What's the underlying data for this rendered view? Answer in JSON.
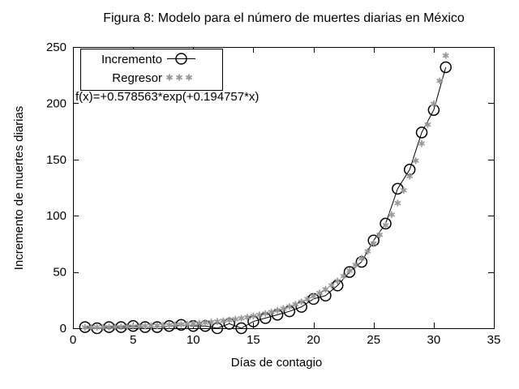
{
  "page": {
    "background": "#ffffff",
    "frame_color": "#000000"
  },
  "chart_data": {
    "type": "line",
    "title": "Figura 8: Modelo para el número de muertes diarias en México",
    "xlabel": "Días de contagio",
    "ylabel": "Incremento de muertes diarias",
    "xlim": [
      0,
      35
    ],
    "ylim": [
      0,
      250
    ],
    "x_ticks": [
      0,
      5,
      10,
      15,
      20,
      25,
      30,
      35
    ],
    "y_ticks": [
      0,
      50,
      100,
      150,
      200,
      250
    ],
    "grid": false,
    "legend_position": "top-left",
    "annotation": "f(x)=+0.578563*exp(+0.194757*x)",
    "series": [
      {
        "name": "Incremento",
        "style": "line-with-open-circles",
        "color": "#000000",
        "x": [
          1,
          2,
          3,
          4,
          5,
          6,
          7,
          8,
          9,
          10,
          11,
          12,
          13,
          14,
          15,
          16,
          17,
          18,
          19,
          20,
          21,
          22,
          23,
          24,
          25,
          26,
          27,
          28,
          29,
          30,
          31
        ],
        "y": [
          1,
          0,
          1,
          1,
          2,
          1,
          1,
          2,
          3,
          2,
          2,
          0,
          4,
          0,
          6,
          9,
          12,
          15,
          19,
          26,
          29,
          38,
          50,
          59,
          78,
          93,
          124,
          141,
          174,
          194,
          232
        ]
      },
      {
        "name": "Regresor",
        "style": "asterisk-points",
        "color": "#999999",
        "x": [
          1,
          1.5,
          2,
          2.5,
          3,
          3.5,
          4,
          4.5,
          5,
          5.5,
          6,
          6.5,
          7,
          7.5,
          8,
          8.5,
          9,
          9.5,
          10,
          10.5,
          11,
          11.5,
          12,
          12.5,
          13,
          13.5,
          14,
          14.5,
          15,
          15.5,
          16,
          16.5,
          17,
          17.5,
          18,
          18.5,
          19,
          19.5,
          20,
          20.5,
          21,
          21.5,
          22,
          22.5,
          23,
          23.5,
          24,
          24.5,
          25,
          25.5,
          26,
          26.5,
          27,
          27.5,
          28,
          28.5,
          29,
          29.5,
          30,
          30.5,
          31
        ],
        "y": [
          0.7,
          0.78,
          0.85,
          0.94,
          1.04,
          1.14,
          1.26,
          1.39,
          1.53,
          1.69,
          1.86,
          2.05,
          2.26,
          2.49,
          2.75,
          3.03,
          3.34,
          3.68,
          4.06,
          4.47,
          4.93,
          5.43,
          5.99,
          6.6,
          7.28,
          8.02,
          8.84,
          9.75,
          10.75,
          11.85,
          13.06,
          14.39,
          15.86,
          17.49,
          19.28,
          21.25,
          23.42,
          25.82,
          28.46,
          31.37,
          34.58,
          38.11,
          42.01,
          46.31,
          51.04,
          56.26,
          62.02,
          68.36,
          75.35,
          83.06,
          91.55,
          100.92,
          111.24,
          122.62,
          135.16,
          148.98,
          164.22,
          181.01,
          199.52,
          219.93,
          242.42
        ]
      }
    ]
  }
}
